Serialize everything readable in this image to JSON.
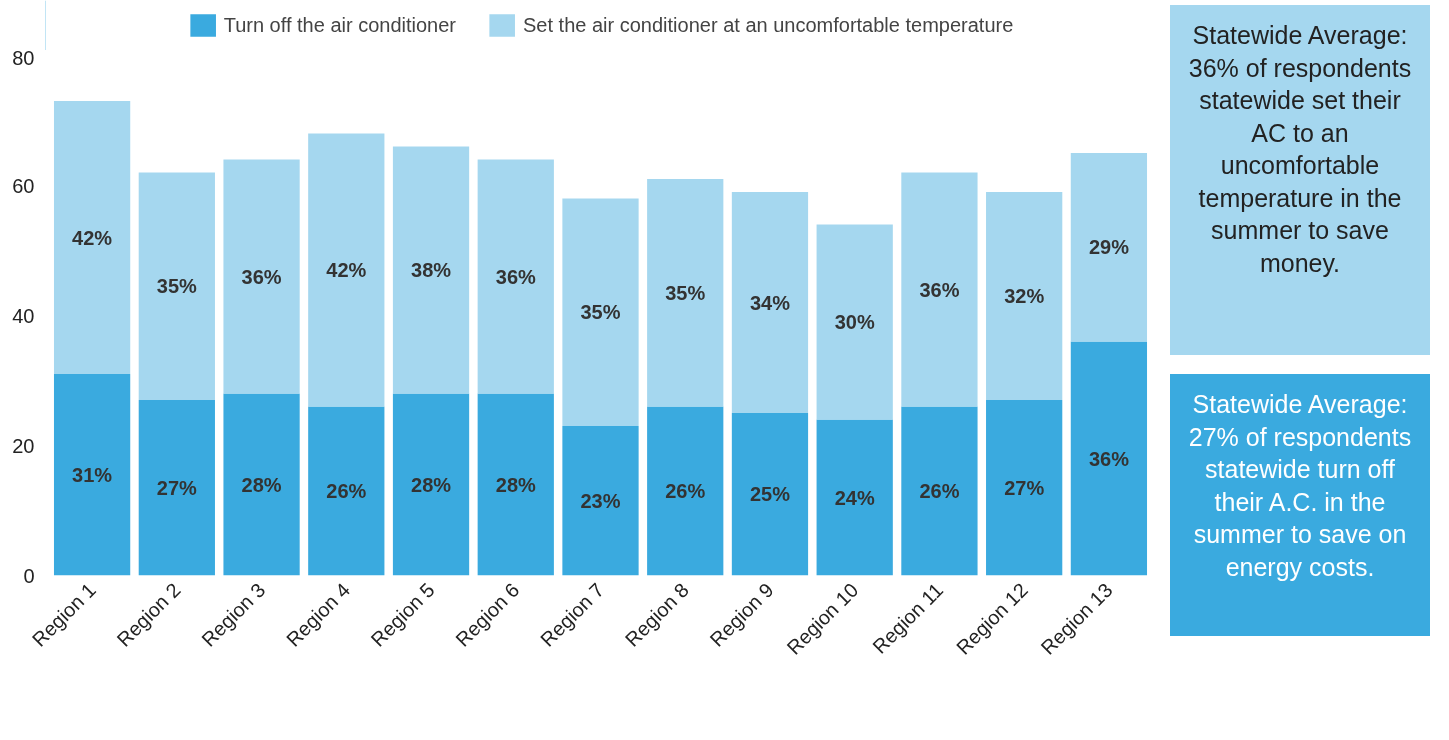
{
  "chart_data": {
    "type": "bar",
    "stacked": true,
    "categories": [
      "Region 1",
      "Region 2",
      "Region 3",
      "Region 4",
      "Region 5",
      "Region 6",
      "Region 7",
      "Region 8",
      "Region 9",
      "Region 10",
      "Region 11",
      "Region 12",
      "Region 13"
    ],
    "series": [
      {
        "name": "Turn off the air conditioner",
        "color": "#3aaadf",
        "values": [
          31,
          27,
          28,
          26,
          28,
          28,
          23,
          26,
          25,
          24,
          26,
          27,
          36
        ],
        "value_labels": [
          "31%",
          "27%",
          "28%",
          "26%",
          "28%",
          "28%",
          "23%",
          "26%",
          "25%",
          "24%",
          "26%",
          "27%",
          "36%"
        ]
      },
      {
        "name": "Set the air conditioner at an uncomfortable temperature",
        "color": "#a5d7ef",
        "values": [
          42,
          35,
          36,
          42,
          38,
          36,
          35,
          35,
          34,
          30,
          36,
          32,
          29
        ],
        "value_labels": [
          "42%",
          "35%",
          "36%",
          "42%",
          "38%",
          "36%",
          "35%",
          "35%",
          "34%",
          "30%",
          "36%",
          "32%",
          "29%"
        ]
      }
    ],
    "ylim": [
      0,
      80
    ],
    "yticks": [
      0,
      20,
      40,
      60,
      80
    ],
    "grid": false,
    "legend": "top",
    "annotations": [
      "Statewide Average: 36% of respondents statewide set their AC to an uncomfortable temperature in the summer to save money.",
      "Statewide Average: 27% of respondents statewide turn off their A.C. in the summer to save on energy costs."
    ]
  }
}
